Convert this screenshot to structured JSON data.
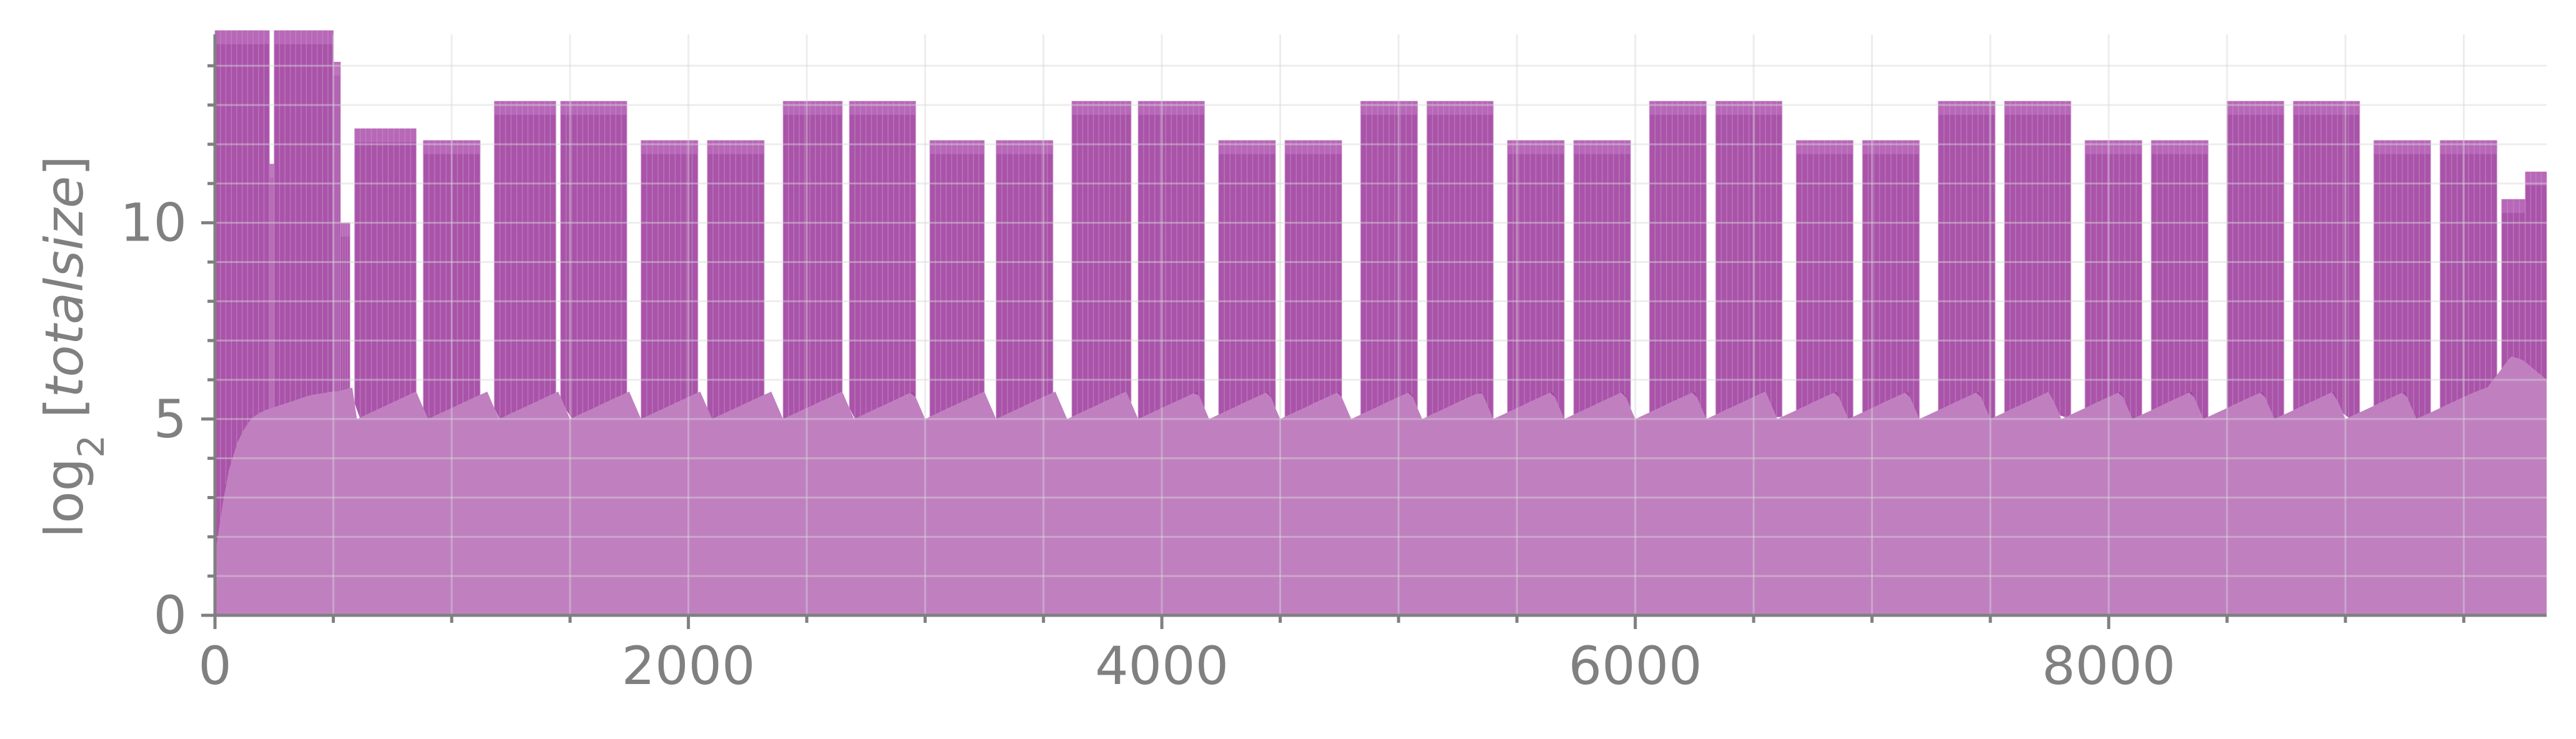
{
  "chart_data": {
    "type": "area",
    "ylabel": "log₂ [totalsize]",
    "ylabel_parts": {
      "pre": "log",
      "sub": "2",
      "open": " [",
      "italic": "totalsize",
      "close": "]"
    },
    "xlim": [
      0,
      9850
    ],
    "ylim": [
      0,
      14.8
    ],
    "x_ticks": [
      0,
      2000,
      4000,
      6000,
      8000
    ],
    "x_tick_labels": [
      "0",
      "2000",
      "4000",
      "6000",
      "8000"
    ],
    "y_ticks": [
      0,
      5,
      10
    ],
    "y_tick_labels": [
      "0",
      "5",
      "10"
    ],
    "grid": true,
    "legend": "none",
    "colors": {
      "fill": "#c080c0",
      "band": "#a040a0",
      "band_top": "#b868b8",
      "axis": "#808080"
    },
    "series": [
      {
        "values_description_x": [
          0,
          50,
          100,
          150,
          200,
          300,
          400,
          500,
          520,
          580,
          600,
          850,
          900,
          1150,
          1200,
          1450,
          1500,
          1750,
          1800,
          2050,
          2100,
          2350,
          2400,
          2650,
          2700,
          2950,
          3000,
          3250,
          3300,
          3550,
          3600,
          3850,
          3900,
          4150,
          4200,
          4450,
          4500,
          4750,
          4800,
          5050,
          5100,
          5350,
          5400,
          5650,
          5700,
          5950,
          6000,
          6250,
          6300,
          6550,
          6600,
          6850,
          6900,
          7150,
          7200,
          7450,
          7500,
          7750,
          7800,
          8050,
          8100,
          8350,
          8400,
          8650,
          8700,
          8950,
          9000,
          9250,
          9300,
          9550,
          9600,
          9700,
          9750,
          9850
        ],
        "lower": [
          1.5,
          3.5,
          4.5,
          5.0,
          5.2,
          5.4,
          5.6,
          5.7,
          5.7,
          5.8,
          5.0,
          5.7,
          5.0,
          5.7,
          5.0,
          5.7,
          5.0,
          5.7,
          5.0,
          5.7,
          5.0,
          5.7,
          5.0,
          5.7,
          5.0,
          5.7,
          5.0,
          5.7,
          5.0,
          5.7,
          5.0,
          5.7,
          5.0,
          5.7,
          5.0,
          5.7,
          5.0,
          5.7,
          5.0,
          5.7,
          5.0,
          5.7,
          5.0,
          5.7,
          5.0,
          5.7,
          5.0,
          5.7,
          5.0,
          5.7,
          5.0,
          5.7,
          5.0,
          5.7,
          5.0,
          5.7,
          5.0,
          5.7,
          5.0,
          5.7,
          5.0,
          5.7,
          5.0,
          5.7,
          5.0,
          5.7,
          5.0,
          5.7,
          5.0,
          5.7,
          5.8,
          6.6,
          6.5,
          6.0
        ]
      }
    ],
    "segments": [
      {
        "x0": 0,
        "x1": 230,
        "top": 14.9
      },
      {
        "x0": 230,
        "x1": 250,
        "top": 11.5
      },
      {
        "x0": 250,
        "x1": 500,
        "top": 14.9
      },
      {
        "x0": 500,
        "x1": 530,
        "top": 14.1
      },
      {
        "x0": 530,
        "x1": 570,
        "top": 10.0
      },
      {
        "x0": 590,
        "x1": 850,
        "top": 12.4
      },
      {
        "x0": 880,
        "x1": 1120,
        "top": 12.1
      },
      {
        "x0": 1180,
        "x1": 1440,
        "top": 13.1
      },
      {
        "x0": 1460,
        "x1": 1740,
        "top": 13.1
      },
      {
        "x0": 1800,
        "x1": 2040,
        "top": 12.1
      },
      {
        "x0": 2080,
        "x1": 2320,
        "top": 12.1
      },
      {
        "x0": 2400,
        "x1": 2650,
        "top": 13.1
      },
      {
        "x0": 2680,
        "x1": 2960,
        "top": 13.1
      },
      {
        "x0": 3020,
        "x1": 3250,
        "top": 12.1
      },
      {
        "x0": 3300,
        "x1": 3540,
        "top": 12.1
      },
      {
        "x0": 3620,
        "x1": 3870,
        "top": 13.1
      },
      {
        "x0": 3900,
        "x1": 4180,
        "top": 13.1
      },
      {
        "x0": 4240,
        "x1": 4480,
        "top": 12.1
      },
      {
        "x0": 4520,
        "x1": 4760,
        "top": 12.1
      },
      {
        "x0": 4840,
        "x1": 5080,
        "top": 13.1
      },
      {
        "x0": 5120,
        "x1": 5400,
        "top": 13.1
      },
      {
        "x0": 5460,
        "x1": 5700,
        "top": 12.1
      },
      {
        "x0": 5740,
        "x1": 5980,
        "top": 12.1
      },
      {
        "x0": 6060,
        "x1": 6300,
        "top": 13.1
      },
      {
        "x0": 6340,
        "x1": 6620,
        "top": 13.1
      },
      {
        "x0": 6680,
        "x1": 6920,
        "top": 12.1
      },
      {
        "x0": 6960,
        "x1": 7200,
        "top": 12.1
      },
      {
        "x0": 7280,
        "x1": 7520,
        "top": 13.1
      },
      {
        "x0": 7560,
        "x1": 7840,
        "top": 13.1
      },
      {
        "x0": 7900,
        "x1": 8140,
        "top": 12.1
      },
      {
        "x0": 8180,
        "x1": 8420,
        "top": 12.1
      },
      {
        "x0": 8500,
        "x1": 8740,
        "top": 13.1
      },
      {
        "x0": 8780,
        "x1": 9060,
        "top": 13.1
      },
      {
        "x0": 9120,
        "x1": 9360,
        "top": 12.1
      },
      {
        "x0": 9400,
        "x1": 9640,
        "top": 12.1
      },
      {
        "x0": 9660,
        "x1": 9760,
        "top": 10.6
      },
      {
        "x0": 9760,
        "x1": 9850,
        "top": 11.3
      }
    ]
  }
}
